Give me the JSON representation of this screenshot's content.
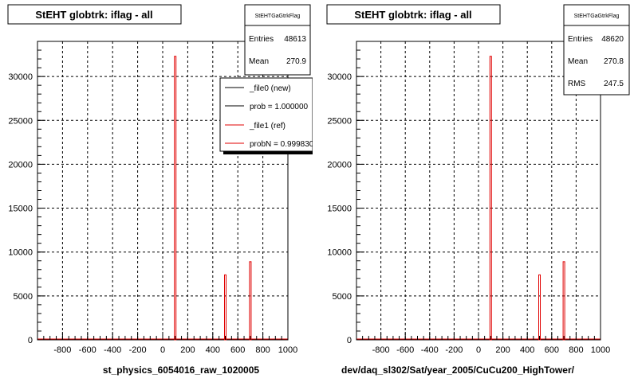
{
  "chart_data": [
    {
      "type": "bar",
      "title": "StEHT globtrk: iflag - all",
      "xlabel": "st_physics_6054016_raw_1020005",
      "ylabel": "",
      "xlim": [
        -1000,
        1000
      ],
      "ylim": [
        0,
        34000
      ],
      "x_ticks": [
        -800,
        -600,
        -400,
        -200,
        0,
        200,
        400,
        600,
        800,
        1000
      ],
      "y_ticks": [
        0,
        5000,
        10000,
        15000,
        20000,
        25000,
        30000
      ],
      "grid": true,
      "series": [
        {
          "name": "_file1 (ref)",
          "color": "#e00000",
          "points": [
            {
              "x": 100,
              "y": 32300
            },
            {
              "x": 500,
              "y": 7400
            },
            {
              "x": 700,
              "y": 8900
            }
          ]
        }
      ],
      "stats": {
        "header": "StEHTGaGtrkFlag",
        "rows": [
          {
            "label": "Entries",
            "value": "48613"
          },
          {
            "label": "Mean",
            "value": "270.9"
          }
        ]
      },
      "legend": {
        "position": "top-right",
        "entries": [
          {
            "label": "_file0 (new)",
            "color": "#000000"
          },
          {
            "label": "prob = 1.000000",
            "color": "#000000"
          },
          {
            "label": "_file1 (ref)",
            "color": "#e00000"
          },
          {
            "label": "probN = 0.999830",
            "color": "#e00000"
          }
        ]
      }
    },
    {
      "type": "bar",
      "title": "StEHT globtrk: iflag - all",
      "xlabel": "dev/daq_sl302/Sat/year_2005/CuCu200_HighTower/",
      "ylabel": "",
      "xlim": [
        -1000,
        1000
      ],
      "ylim": [
        0,
        34000
      ],
      "x_ticks": [
        -800,
        -600,
        -400,
        -200,
        0,
        200,
        400,
        600,
        800,
        1000
      ],
      "y_ticks": [
        0,
        5000,
        10000,
        15000,
        20000,
        25000,
        30000
      ],
      "grid": true,
      "series": [
        {
          "name": "",
          "color": "#e00000",
          "points": [
            {
              "x": 100,
              "y": 32300
            },
            {
              "x": 500,
              "y": 7400
            },
            {
              "x": 700,
              "y": 8900
            }
          ]
        }
      ],
      "stats": {
        "header": "StEHTGaGtrkFlag",
        "rows": [
          {
            "label": "Entries",
            "value": "48620"
          },
          {
            "label": "Mean",
            "value": "270.8"
          },
          {
            "label": "RMS",
            "value": "247.5"
          }
        ]
      }
    }
  ]
}
